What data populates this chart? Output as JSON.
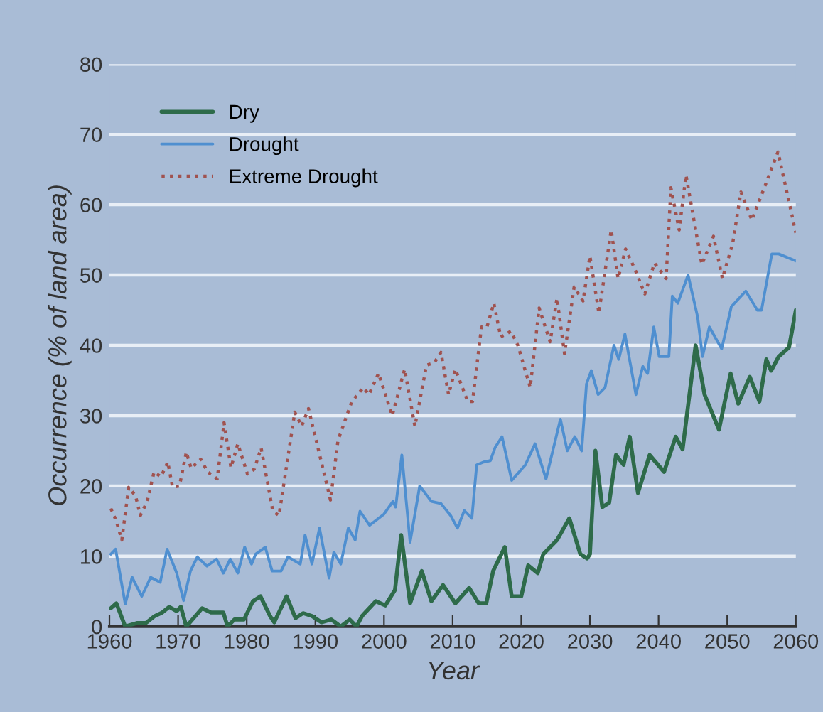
{
  "chart_data": {
    "type": "line",
    "xlabel": "Year",
    "ylabel": "Occurrence (% of land area)",
    "xlim": [
      1960,
      2060
    ],
    "xticks": [
      1960,
      1970,
      1980,
      1990,
      2000,
      2010,
      2020,
      2030,
      2040,
      2050,
      2060
    ],
    "ylim": [
      0,
      80
    ],
    "yticks": [
      0,
      10,
      20,
      30,
      40,
      50,
      60,
      70,
      80
    ],
    "grid": "y",
    "legend": "top left",
    "series": [
      {
        "name": "Dry",
        "color": "#2e6b4a",
        "line_style": "solid",
        "x": [
          1960.2,
          1961,
          1962.3,
          1964,
          1965.3,
          1966.6,
          1967.7,
          1968.7,
          1969.8,
          1970.4,
          1971.2,
          1973.5,
          1974.8,
          1976.6,
          1977.2,
          1978.2,
          1979.6,
          1980.9,
          1982,
          1983.4,
          1984,
          1985.8,
          1987.1,
          1988.2,
          1989.5,
          1990.9,
          1992.3,
          1993.7,
          1995,
          1996,
          1996.8,
          1998.8,
          2000.2,
          2001.6,
          2002.5,
          2003.8,
          2005.5,
          2006.9,
          2008.6,
          2010.4,
          2012.4,
          2013.8,
          2014.9,
          2015.9,
          2017.6,
          2018.6,
          2020,
          2021,
          2022.4,
          2023.2,
          2025.2,
          2027,
          2028.6,
          2029.6,
          2030,
          2030.8,
          2031.8,
          2032.8,
          2033.8,
          2034.9,
          2035.8,
          2037,
          2038.7,
          2040.8,
          2042.5,
          2043.5,
          2045.4,
          2046.7,
          2048.8,
          2050.5,
          2051.6,
          2053.3,
          2054.7,
          2055.7,
          2056.4,
          2057.5,
          2059,
          2060
        ],
        "values": [
          2.6,
          3.3,
          0,
          0.5,
          0.5,
          1.5,
          2,
          2.8,
          2.2,
          2.8,
          0,
          2.6,
          2,
          2,
          0,
          1,
          1,
          3.6,
          4.3,
          1.5,
          0.6,
          4.3,
          1.2,
          1.9,
          1.5,
          0.6,
          1,
          0,
          1,
          0,
          1.5,
          3.6,
          3,
          5.2,
          13,
          3.3,
          7.9,
          3.6,
          5.9,
          3.3,
          5.5,
          3.3,
          3.3,
          7.9,
          11.3,
          4.3,
          4.3,
          8.7,
          7.6,
          10.3,
          12.3,
          15.4,
          10.3,
          9.7,
          10.3,
          25,
          17,
          17.6,
          24.4,
          23,
          27,
          19,
          24.4,
          22,
          27,
          25.2,
          40,
          33,
          28,
          36,
          31.7,
          35.5,
          32,
          38,
          36.4,
          38.4,
          39.7,
          45
        ]
      },
      {
        "name": "Drought",
        "color": "#4f8fd0",
        "line_style": "solid",
        "x": [
          1960.2,
          1960.9,
          1962.3,
          1963.3,
          1964.7,
          1966,
          1967.4,
          1968.4,
          1969.8,
          1970.8,
          1971.8,
          1972.8,
          1974.2,
          1975.6,
          1976.6,
          1977.6,
          1978.7,
          1979.7,
          1980.7,
          1981.3,
          1982.7,
          1983.7,
          1985,
          1986,
          1987.8,
          1988.5,
          1989.5,
          1990.6,
          1992,
          1992.7,
          1993.7,
          1994.8,
          1995.8,
          1996.5,
          1997.9,
          2000,
          2001.3,
          2001.7,
          2002.6,
          2003.8,
          2005.2,
          2006.9,
          2008.3,
          2009.7,
          2010.7,
          2011.7,
          2012.8,
          2013.5,
          2014.5,
          2015.5,
          2016.2,
          2017.2,
          2018.6,
          2020.6,
          2022,
          2023.6,
          2025.7,
          2026.7,
          2027.8,
          2028.8,
          2029.5,
          2030.2,
          2031.2,
          2032.2,
          2033.5,
          2034.2,
          2035.1,
          2036.7,
          2037.7,
          2038.4,
          2039.3,
          2040.1,
          2041.5,
          2042,
          2042.8,
          2044.3,
          2045.7,
          2046.4,
          2047.4,
          2049.2,
          2050.6,
          2052.7,
          2054.4,
          2055,
          2056.5,
          2057.5,
          2060
        ],
        "values": [
          10.3,
          11,
          3.2,
          7,
          4.3,
          7,
          6.3,
          11,
          7.6,
          3.7,
          7.9,
          9.9,
          8.6,
          9.6,
          7.6,
          9.6,
          7.6,
          11.3,
          8.9,
          10.3,
          11.3,
          7.9,
          7.9,
          9.9,
          8.9,
          13,
          8.9,
          14,
          6.9,
          10.6,
          8.9,
          14,
          12.3,
          16.4,
          14.4,
          16,
          17.8,
          17,
          24.4,
          12,
          20,
          17.8,
          17.5,
          15.8,
          14,
          16.5,
          15.4,
          23,
          23.4,
          23.6,
          25.5,
          27,
          20.8,
          23,
          26,
          21,
          29.5,
          25,
          27,
          25,
          34.5,
          36.4,
          33,
          34,
          40,
          38,
          41.6,
          33,
          37,
          36,
          42.6,
          38.4,
          38.4,
          47,
          46,
          50,
          44,
          38.4,
          42.6,
          39.5,
          45.5,
          47.7,
          45,
          45,
          53,
          53,
          52
        ]
      },
      {
        "name": "Extreme Drought",
        "color": "#a0524f",
        "line_style": "dotted",
        "x": [
          1960.2,
          1961,
          1961.8,
          1962.8,
          1963.8,
          1964.5,
          1965.5,
          1966.5,
          1967.5,
          1968.5,
          1969.2,
          1970.2,
          1971.2,
          1971.9,
          1973.3,
          1974.3,
          1975.7,
          1976.7,
          1977.7,
          1978.7,
          1980.1,
          1981.1,
          1982.1,
          1983.8,
          1984.7,
          1987,
          1988,
          1989,
          1992.2,
          1993.3,
          1995.3,
          1997,
          1997.8,
          1999.2,
          2001.2,
          2003,
          2004.5,
          2006.2,
          2007.3,
          2008.3,
          2009.4,
          2010.4,
          2012.2,
          2012.9,
          2014.2,
          2015,
          2016,
          2017,
          2018.5,
          2019.5,
          2021.3,
          2022.6,
          2024.2,
          2025.2,
          2026.3,
          2027.7,
          2029,
          2030,
          2031.3,
          2033.1,
          2034.1,
          2035.2,
          2036.6,
          2038,
          2039.4,
          2041.1,
          2041.8,
          2043,
          2044,
          2046.3,
          2048,
          2049.3,
          2050.8,
          2052,
          2053.6,
          2057.4,
          2060
        ],
        "values": [
          16.8,
          15,
          12.3,
          19.8,
          18.6,
          15.8,
          17.8,
          22,
          21.3,
          23.4,
          19.8,
          20,
          24.8,
          22.5,
          23.8,
          22,
          21,
          29,
          22.6,
          26,
          21.7,
          22.4,
          25.4,
          16.4,
          15.8,
          30.5,
          28.5,
          31,
          18,
          26.5,
          32,
          34,
          33,
          36,
          30,
          36.6,
          28.5,
          37.2,
          37.5,
          39,
          33,
          36.6,
          32,
          32,
          42.6,
          42.6,
          46,
          41.2,
          42,
          40,
          34,
          45.3,
          40.5,
          46.7,
          38.8,
          48.3,
          46.3,
          52.7,
          44.6,
          56.4,
          49.5,
          53.7,
          50.7,
          47.3,
          51.7,
          49.5,
          62.4,
          56.4,
          64.2,
          51.5,
          55.5,
          49.5,
          54.5,
          61.8,
          57.8,
          67.5,
          56
        ]
      }
    ]
  }
}
